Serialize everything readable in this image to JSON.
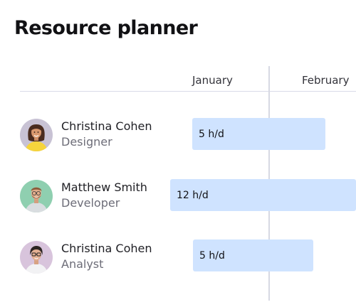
{
  "page": {
    "title": "Resource planner"
  },
  "timeline": {
    "months": [
      "January",
      "February"
    ]
  },
  "resources": [
    {
      "name": "Christina Cohen",
      "role": "Designer",
      "allocation": "5 h/d"
    },
    {
      "name": "Matthew Smith",
      "role": "Developer",
      "allocation": "12 h/d"
    },
    {
      "name": "Christina Cohen",
      "role": "Analyst",
      "allocation": "5 h/d"
    }
  ],
  "colors": {
    "bar": "#cfe3ff",
    "grid_line": "#d7d9e3",
    "role_text": "#6d6d78"
  },
  "icons": {
    "avatar_1": "woman-portrait",
    "avatar_2": "man-portrait",
    "avatar_3": "woman-glasses-portrait"
  }
}
